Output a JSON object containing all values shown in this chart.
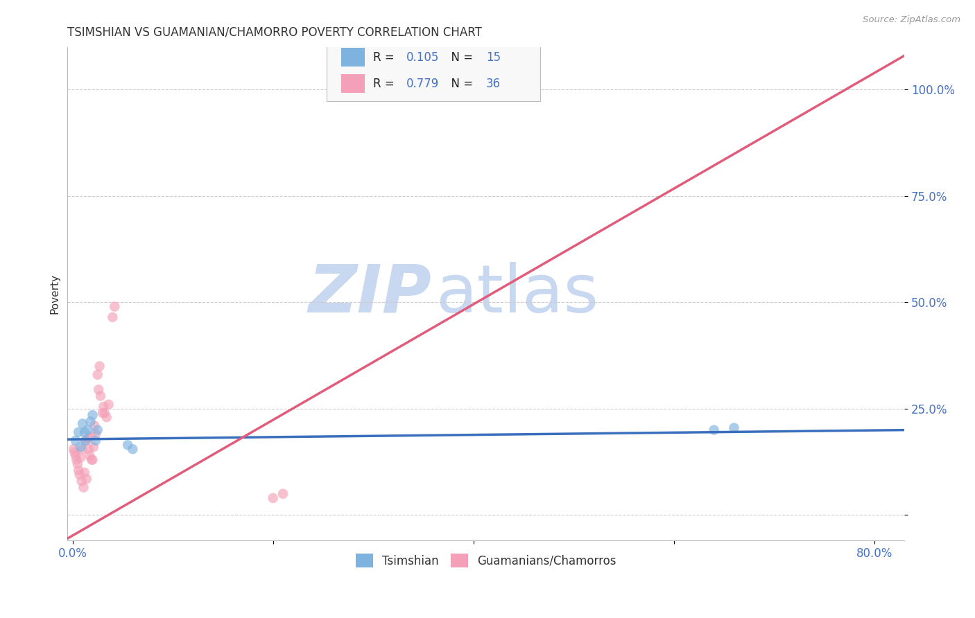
{
  "title": "TSIMSHIAN VS GUAMANIAN/CHAMORRO POVERTY CORRELATION CHART",
  "source": "Source: ZipAtlas.com",
  "ylabel_label": "Poverty",
  "xlim": [
    -0.005,
    0.83
  ],
  "ylim": [
    -0.06,
    1.1
  ],
  "watermark_zip": "ZIP",
  "watermark_atlas": "atlas",
  "legend_label1": "Tsimshian",
  "legend_label2": "Guamanians/Chamorros",
  "blue_scatter_x": [
    0.003,
    0.006,
    0.008,
    0.01,
    0.012,
    0.013,
    0.015,
    0.018,
    0.02,
    0.023,
    0.025,
    0.055,
    0.06,
    0.64,
    0.66
  ],
  "blue_scatter_y": [
    0.175,
    0.195,
    0.16,
    0.215,
    0.195,
    0.175,
    0.2,
    0.22,
    0.235,
    0.175,
    0.2,
    0.165,
    0.155,
    0.2,
    0.205
  ],
  "pink_scatter_x": [
    0.001,
    0.002,
    0.003,
    0.004,
    0.005,
    0.006,
    0.007,
    0.008,
    0.009,
    0.01,
    0.011,
    0.012,
    0.013,
    0.014,
    0.015,
    0.016,
    0.017,
    0.018,
    0.019,
    0.02,
    0.021,
    0.022,
    0.023,
    0.025,
    0.026,
    0.027,
    0.028,
    0.03,
    0.031,
    0.032,
    0.034,
    0.036,
    0.04,
    0.042,
    0.2,
    0.21
  ],
  "pink_scatter_y": [
    0.155,
    0.148,
    0.14,
    0.13,
    0.12,
    0.105,
    0.095,
    0.135,
    0.08,
    0.155,
    0.065,
    0.1,
    0.175,
    0.085,
    0.18,
    0.155,
    0.14,
    0.185,
    0.13,
    0.13,
    0.16,
    0.21,
    0.19,
    0.33,
    0.295,
    0.35,
    0.28,
    0.24,
    0.255,
    0.24,
    0.23,
    0.26,
    0.465,
    0.49,
    0.04,
    0.05
  ],
  "blue_line_x": [
    -0.005,
    0.83
  ],
  "blue_line_y": [
    0.178,
    0.2
  ],
  "pink_line_x": [
    -0.005,
    0.83
  ],
  "pink_line_y": [
    -0.055,
    1.08
  ],
  "blue_line_color": "#3a6fbd",
  "pink_line_color": "#e05c7a",
  "blue_dot_color": "#7eb3e0",
  "pink_dot_color": "#f4a0b8",
  "dot_size": 110,
  "dot_alpha": 0.65,
  "grid_color": "#cccccc",
  "background_color": "#ffffff",
  "title_fontsize": 12,
  "axis_label_fontsize": 11,
  "tick_fontsize": 12,
  "tick_color": "#4472c4",
  "watermark_color_zip": "#c8d8f0",
  "watermark_color_atlas": "#c8d8f0",
  "watermark_fontsize": 70,
  "r1": "0.105",
  "n1": "15",
  "r2": "0.779",
  "n2": "36"
}
